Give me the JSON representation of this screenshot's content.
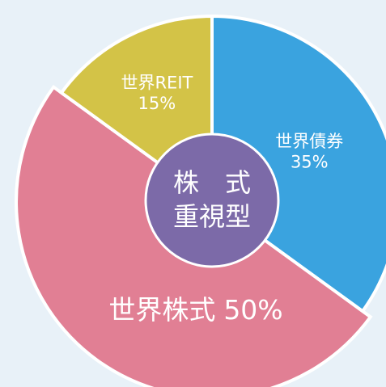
{
  "chart_data": {
    "type": "pie",
    "categories": [
      "世界債券",
      "世界株式",
      "世界REIT"
    ],
    "values": [
      35,
      50,
      15
    ],
    "value_labels": [
      "35%",
      "50%",
      "15%"
    ],
    "colors": [
      "#3aa3df",
      "#e17f94",
      "#d3c347"
    ],
    "center_label": [
      "株　式",
      "重視型"
    ],
    "center_color": "#7c6aa8"
  }
}
